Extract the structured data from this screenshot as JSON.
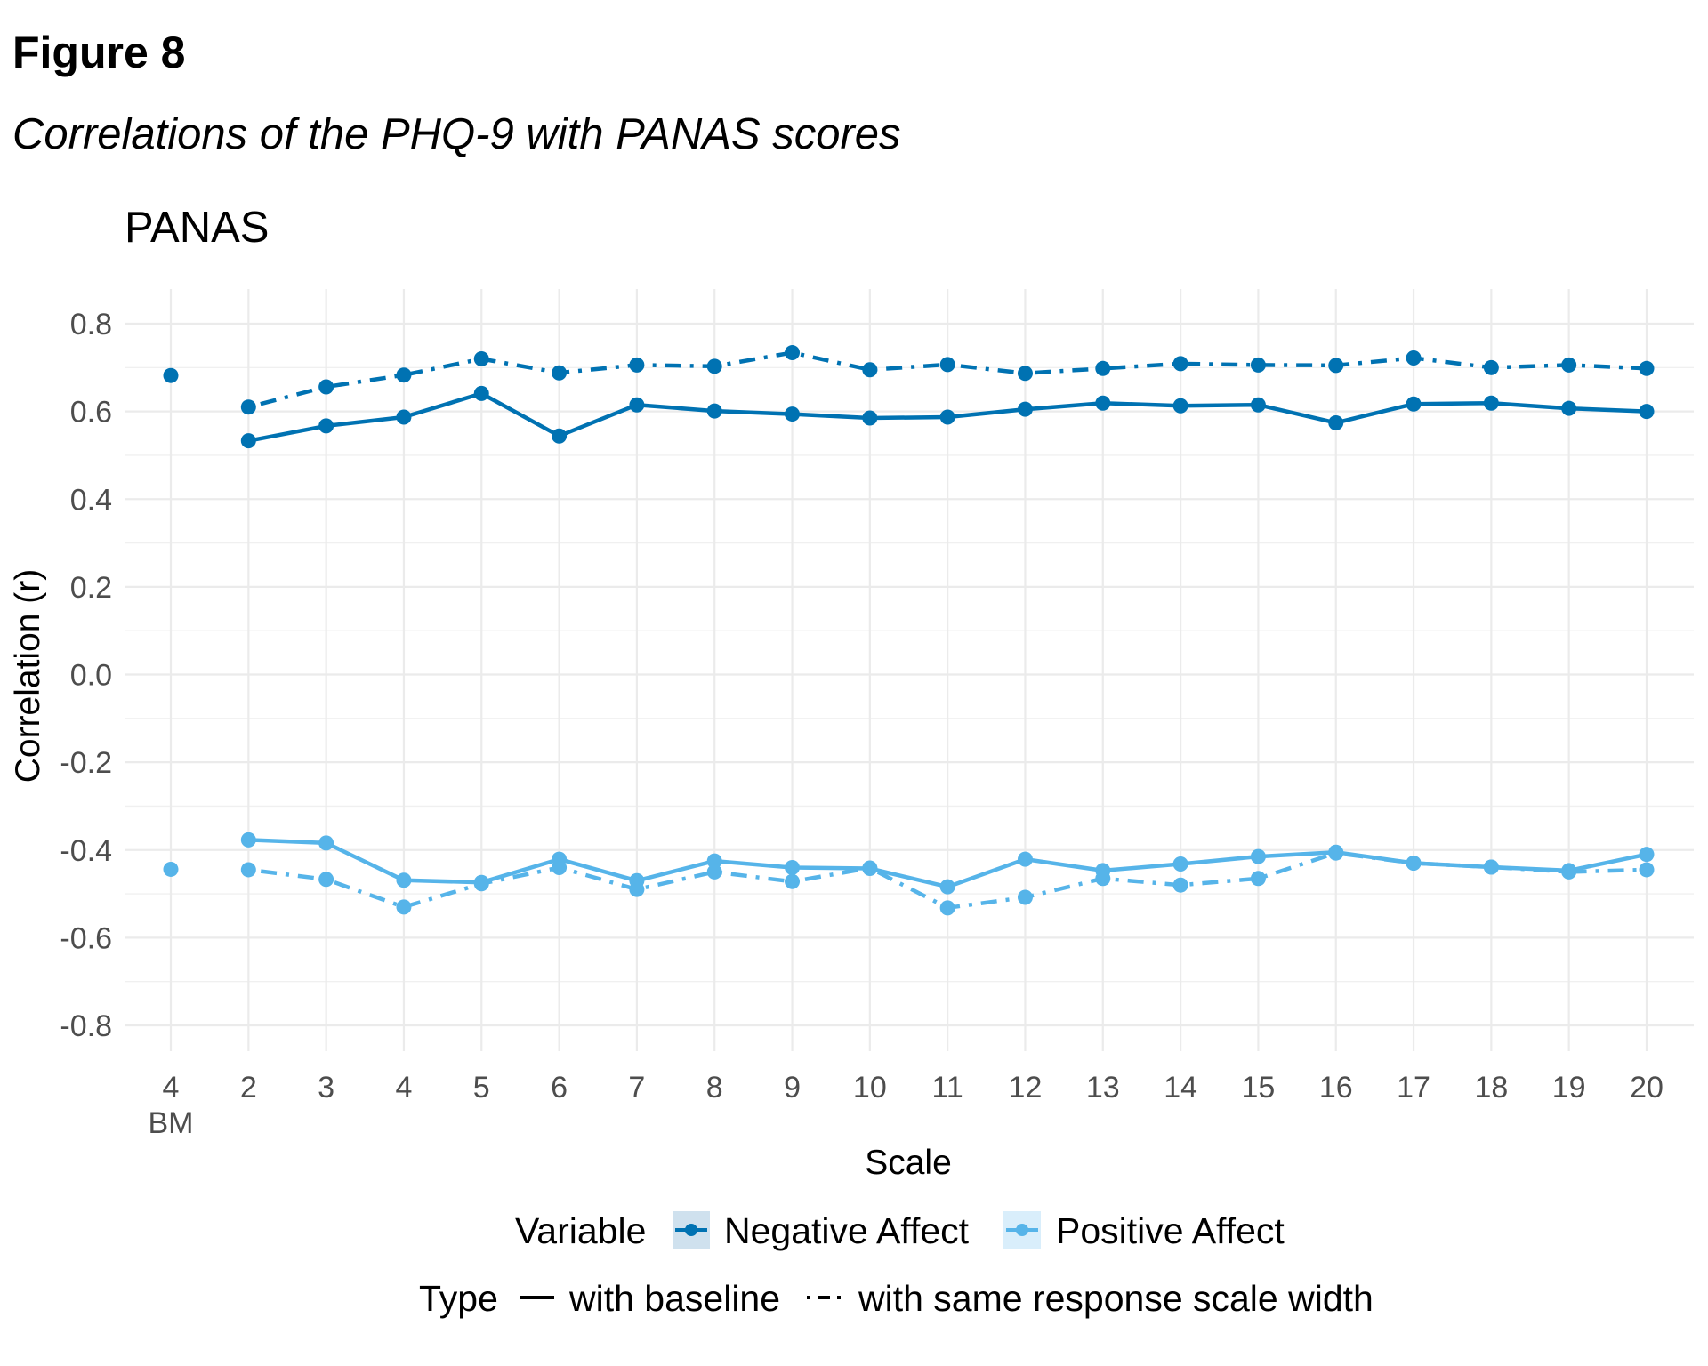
{
  "figure_label": "Figure 8",
  "figure_caption": "Correlations of the PHQ-9 with PANAS scores",
  "chart_data": {
    "type": "line",
    "title": "PANAS",
    "xlabel": "Scale",
    "ylabel": "Correlation (r)",
    "ylim": [
      -0.88,
      0.88
    ],
    "yticks": [
      -0.8,
      -0.6,
      -0.4,
      -0.2,
      0.0,
      0.2,
      0.4,
      0.6,
      0.8
    ],
    "ytick_labels": [
      "-0.8",
      "-0.6",
      "-0.4",
      "-0.2",
      "0.0",
      "0.2",
      "0.4",
      "0.6",
      "0.8"
    ],
    "categories": [
      "4 BM",
      "2",
      "3",
      "4",
      "5",
      "6",
      "7",
      "8",
      "9",
      "10",
      "11",
      "12",
      "13",
      "14",
      "15",
      "16",
      "17",
      "18",
      "19",
      "20"
    ],
    "xtick_labels": [
      [
        "4",
        "BM"
      ],
      [
        "2"
      ],
      [
        "3"
      ],
      [
        "4"
      ],
      [
        "5"
      ],
      [
        "6"
      ],
      [
        "7"
      ],
      [
        "8"
      ],
      [
        "9"
      ],
      [
        "10"
      ],
      [
        "11"
      ],
      [
        "12"
      ],
      [
        "13"
      ],
      [
        "14"
      ],
      [
        "15"
      ],
      [
        "16"
      ],
      [
        "17"
      ],
      [
        "18"
      ],
      [
        "19"
      ],
      [
        "20"
      ]
    ],
    "grid": true,
    "colors": {
      "Negative Affect": "#0072B2",
      "Positive Affect": "#56B4E9"
    },
    "series": [
      {
        "name": "Negative Affect",
        "type": "with baseline",
        "values": [
          null,
          0.533,
          0.567,
          0.587,
          0.641,
          0.544,
          0.615,
          0.601,
          0.594,
          0.585,
          0.587,
          0.605,
          0.619,
          0.613,
          0.615,
          0.574,
          0.617,
          0.619,
          0.607,
          0.6
        ]
      },
      {
        "name": "Negative Affect",
        "type": "with same response scale width",
        "values": [
          0.682,
          0.61,
          0.656,
          0.683,
          0.72,
          0.688,
          0.706,
          0.703,
          0.734,
          0.695,
          0.707,
          0.687,
          0.698,
          0.709,
          0.706,
          0.705,
          0.722,
          0.7,
          0.706,
          0.698
        ]
      },
      {
        "name": "Positive Affect",
        "type": "with baseline",
        "values": [
          null,
          -0.377,
          -0.384,
          -0.469,
          -0.474,
          -0.421,
          -0.47,
          -0.425,
          -0.44,
          -0.442,
          -0.484,
          -0.421,
          -0.447,
          -0.432,
          -0.415,
          -0.405,
          -0.43,
          -0.439,
          -0.447,
          -0.41
        ]
      },
      {
        "name": "Positive Affect",
        "type": "with same response scale width",
        "values": [
          -0.444,
          -0.445,
          -0.467,
          -0.53,
          -0.477,
          -0.44,
          -0.49,
          -0.45,
          -0.472,
          -0.441,
          -0.532,
          -0.508,
          -0.465,
          -0.48,
          -0.465,
          -0.407,
          -0.43,
          -0.439,
          -0.45,
          -0.445
        ]
      }
    ],
    "legend": {
      "placement": "bottom",
      "variable_title": "Variable",
      "variable_items": [
        "Negative Affect",
        "Positive Affect"
      ],
      "type_title": "Type",
      "type_items": [
        "with baseline",
        "with same response scale width"
      ]
    }
  }
}
